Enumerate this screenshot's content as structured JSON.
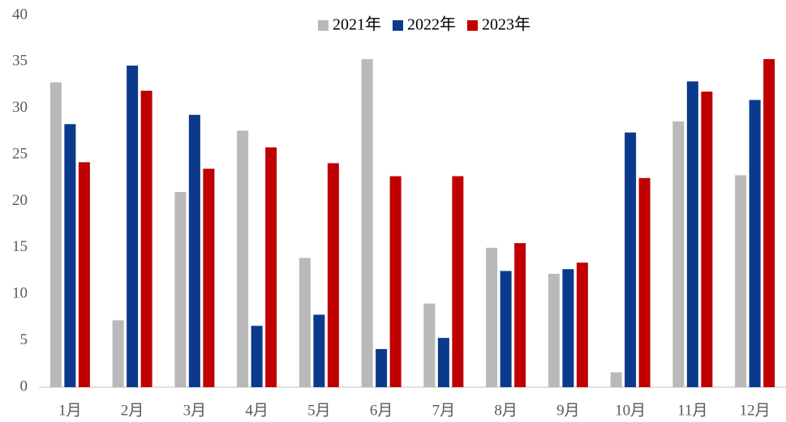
{
  "chart_data": {
    "type": "bar",
    "categories": [
      "1月",
      "2月",
      "3月",
      "4月",
      "5月",
      "6月",
      "7月",
      "8月",
      "9月",
      "10月",
      "11月",
      "12月"
    ],
    "series": [
      {
        "name": "2021年",
        "color": "#b9b9b9",
        "values": [
          32.8,
          7.2,
          21.0,
          27.6,
          13.9,
          35.3,
          9.0,
          15.0,
          12.2,
          1.6,
          28.6,
          22.8
        ]
      },
      {
        "name": "2022年",
        "color": "#0b3a8c",
        "values": [
          28.3,
          34.6,
          29.3,
          6.6,
          7.8,
          4.1,
          5.3,
          12.5,
          12.7,
          27.4,
          32.9,
          30.9
        ]
      },
      {
        "name": "2023年",
        "color": "#c00000",
        "values": [
          24.2,
          31.9,
          23.5,
          25.8,
          24.1,
          22.7,
          22.7,
          15.5,
          13.4,
          22.5,
          31.8,
          35.3
        ]
      }
    ],
    "ylim": [
      0,
      40
    ],
    "yticks": [
      0,
      5,
      10,
      15,
      20,
      25,
      30,
      35,
      40
    ],
    "grid": false,
    "legend": "top"
  }
}
